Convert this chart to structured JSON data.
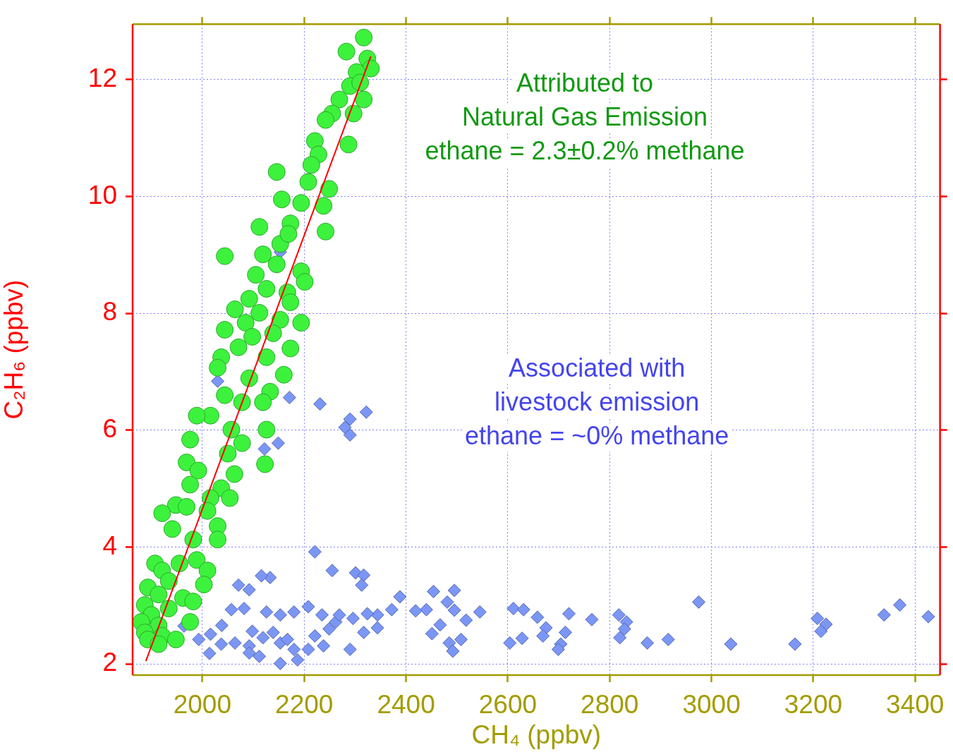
{
  "chart_data": {
    "type": "scatter",
    "xlabel": "CH₄ (ppbv)",
    "ylabel": "C₂H₆ (ppbv)",
    "xlim": [
      1863,
      3449
    ],
    "ylim": [
      1.81,
      12.95
    ],
    "xticks": [
      2000,
      2200,
      2400,
      2600,
      2800,
      3000,
      3200,
      3400
    ],
    "yticks": [
      2,
      4,
      6,
      8,
      10,
      12
    ],
    "grid": true,
    "legend": false,
    "annotations": [
      "Attributed to\nNatural Gas Emission\nethane = 2.3±0.2% methane",
      "Associated with\nlivestock emission\nethane = ~0% methane"
    ],
    "series": [
      {
        "type": "scatter",
        "marker": "diamond",
        "color": "#7b96f5",
        "x": [
          2153,
          2030,
          2171,
          2231,
          2290,
          2280,
          2290,
          2322,
          2149,
          2122,
          2221,
          2255,
          2301,
          2317,
          2313,
          2133,
          2116,
          2071,
          2092,
          2388,
          2454,
          2495,
          2481,
          2440,
          2419,
          2372,
          2344,
          2324,
          2296,
          2262,
          2235,
          2208,
          2180,
          2153,
          2126,
          2082,
          2057,
          2038,
          2016,
          1993,
          1964,
          2037,
          2064,
          2092,
          2098,
          2119,
          2139,
          2153,
          2167,
          2180,
          2208,
          2221,
          2249,
          2238,
          2290,
          2317,
          2344,
          2112,
          2153,
          2187,
          2014,
          2092,
          2269,
          2451,
          2467,
          2485,
          2492,
          2508,
          2518,
          2545,
          2495,
          2611,
          2631,
          2658,
          2675,
          2669,
          2720,
          2713,
          2704,
          2699,
          2604,
          2628,
          2765,
          2818,
          2833,
          2829,
          2820,
          2874,
          2915,
          2975,
          3038,
          3164,
          3208,
          3225,
          3215,
          3339,
          3370,
          3426
        ],
        "values": [
          9.05,
          6.84,
          6.56,
          6.45,
          6.19,
          6.05,
          5.92,
          6.31,
          5.78,
          5.68,
          3.92,
          3.6,
          3.56,
          3.52,
          3.35,
          3.48,
          3.51,
          3.35,
          3.27,
          3.15,
          3.24,
          3.26,
          3.06,
          2.93,
          2.91,
          2.93,
          2.84,
          2.86,
          2.78,
          2.72,
          2.84,
          2.98,
          2.89,
          2.84,
          2.89,
          2.95,
          2.93,
          2.66,
          2.51,
          2.42,
          2.65,
          2.34,
          2.36,
          2.31,
          2.56,
          2.45,
          2.54,
          2.36,
          2.42,
          2.25,
          2.25,
          2.48,
          2.6,
          2.31,
          2.25,
          2.54,
          2.62,
          2.13,
          2.01,
          2.07,
          2.18,
          2.19,
          2.84,
          2.52,
          2.67,
          2.36,
          2.22,
          2.42,
          2.75,
          2.89,
          2.92,
          2.95,
          2.93,
          2.8,
          2.62,
          2.48,
          2.86,
          2.54,
          2.34,
          2.25,
          2.36,
          2.44,
          2.76,
          2.84,
          2.72,
          2.6,
          2.45,
          2.36,
          2.42,
          3.06,
          2.34,
          2.34,
          2.78,
          2.68,
          2.56,
          2.84,
          3.01,
          2.81
        ]
      },
      {
        "type": "scatter",
        "marker": "circle",
        "color": "#3df23d",
        "x": [
          2317,
          2283,
          2324,
          2331,
          2303,
          2290,
          2310,
          2269,
          2255,
          2242,
          2317,
          2297,
          2287,
          2221,
          2228,
          2214,
          2208,
          2249,
          2238,
          2194,
          2156,
          2146,
          2242,
          2173,
          2112,
          2044,
          2153,
          2169,
          2119,
          2146,
          2194,
          2201,
          2105,
          2167,
          2126,
          2173,
          2092,
          2064,
          2194,
          2153,
          2112,
          2085,
          2139,
          2173,
          2044,
          2098,
          2071,
          2037,
          2126,
          2160,
          2030,
          2092,
          2133,
          2044,
          2078,
          2119,
          2016,
          1989,
          1976,
          2057,
          2126,
          2078,
          2050,
          1969,
          2123,
          1992,
          2063,
          1976,
          2037,
          2016,
          2054,
          1948,
          1969,
          1921,
          2010,
          1941,
          2030,
          1982,
          2030,
          1907,
          1955,
          1989,
          1921,
          2010,
          1934,
          1893,
          2003,
          1914,
          1962,
          1982,
          1887,
          1934,
          1900,
          1976,
          1880,
          1914,
          1887,
          1921,
          1893,
          1914,
          1948
        ],
        "values": [
          12.72,
          12.48,
          12.36,
          12.19,
          12.13,
          11.89,
          11.95,
          11.66,
          11.42,
          11.31,
          11.66,
          11.42,
          10.89,
          10.95,
          10.72,
          10.54,
          10.25,
          10.13,
          9.84,
          9.89,
          9.95,
          10.42,
          9.4,
          9.54,
          9.48,
          8.98,
          9.19,
          9.36,
          9.01,
          8.84,
          8.72,
          8.54,
          8.66,
          8.36,
          8.42,
          8.19,
          8.25,
          8.07,
          7.84,
          7.89,
          8.01,
          7.84,
          7.66,
          7.4,
          7.72,
          7.6,
          7.42,
          7.25,
          7.25,
          6.95,
          7.07,
          6.89,
          6.66,
          6.6,
          6.48,
          6.48,
          6.25,
          6.25,
          5.84,
          6.01,
          6.01,
          5.78,
          5.6,
          5.45,
          5.42,
          5.31,
          5.25,
          5.07,
          5.01,
          4.84,
          4.84,
          4.72,
          4.69,
          4.58,
          4.62,
          4.31,
          4.36,
          4.13,
          4.13,
          3.72,
          3.72,
          3.78,
          3.6,
          3.6,
          3.42,
          3.31,
          3.36,
          3.19,
          3.13,
          3.07,
          3.01,
          2.95,
          2.84,
          2.72,
          2.72,
          2.66,
          2.54,
          2.48,
          2.42,
          2.34,
          2.42
        ]
      },
      {
        "type": "line",
        "marker": "none",
        "line_style": "solid",
        "color": "#ff0000",
        "x": [
          1889,
          2331
        ],
        "values": [
          2.05,
          12.4
        ]
      }
    ]
  }
}
